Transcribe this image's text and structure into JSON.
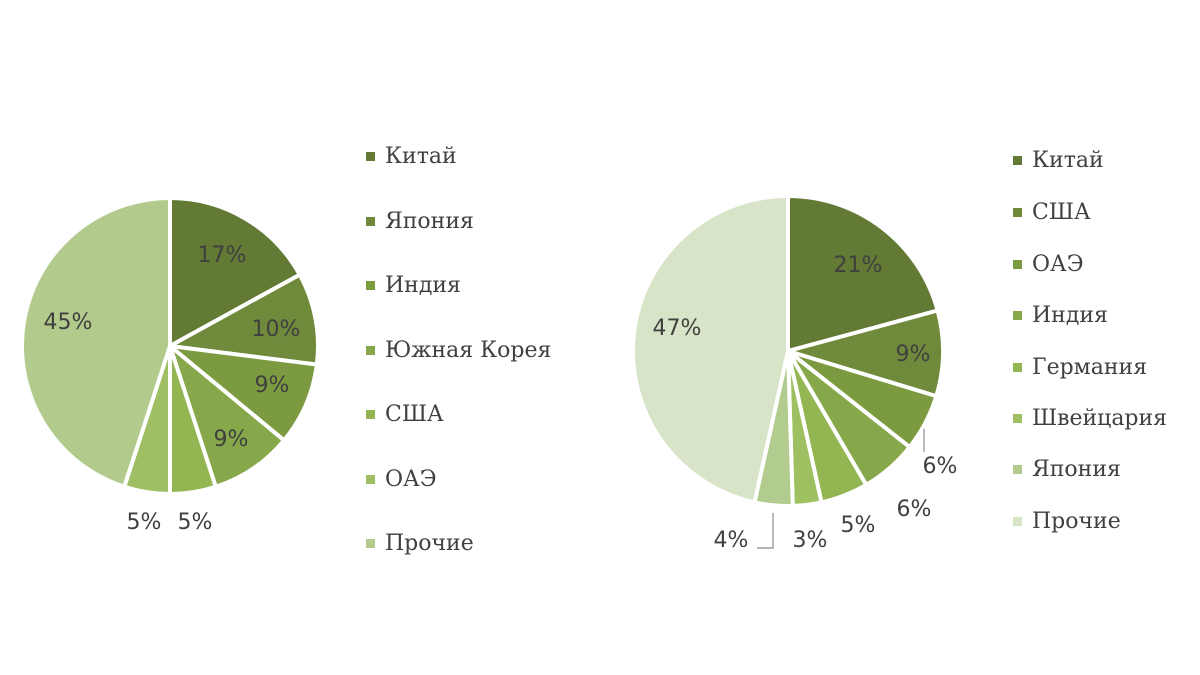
{
  "chart_data": [
    {
      "type": "pie",
      "title": "",
      "categories": [
        "Китай",
        "Япония",
        "Индия",
        "Южная Корея",
        "США",
        "ОАЭ",
        "Прочие"
      ],
      "values": [
        17,
        10,
        9,
        9,
        5,
        5,
        45
      ],
      "labels": [
        "17%",
        "10%",
        "9%",
        "9%",
        "5%",
        "5%",
        "45%"
      ],
      "colors": [
        "#627a34",
        "#6f8a3a",
        "#7c9a40",
        "#87a84a",
        "#93b552",
        "#9fbf64",
        "#b2ca8c"
      ],
      "legend_position": "right"
    },
    {
      "type": "pie",
      "title": "",
      "categories": [
        "Китай",
        "США",
        "ОАЭ",
        "Индия",
        "Германия",
        "Швейцария",
        "Япония",
        "Прочие"
      ],
      "values": [
        21,
        9,
        6,
        6,
        5,
        3,
        4,
        47
      ],
      "labels": [
        "21%",
        "9%",
        "6%",
        "6%",
        "5%",
        "3%",
        "4%",
        "47%"
      ],
      "colors": [
        "#627a34",
        "#6f8a3a",
        "#7c9a40",
        "#87a84a",
        "#93b552",
        "#9fc060",
        "#b2cb8e",
        "#d8e4c8"
      ],
      "legend_position": "right"
    }
  ],
  "charts": [
    {
      "legend": [
        "Китай",
        "Япония",
        "Индия",
        "Южная Корея",
        "США",
        "ОАЭ",
        "Прочие"
      ],
      "labels": [
        "17%",
        "10%",
        "9%",
        "9%",
        "5%",
        "5%",
        "45%"
      ]
    },
    {
      "legend": [
        "Китай",
        "США",
        "ОАЭ",
        "Индия",
        "Германия",
        "Швейцария",
        "Япония",
        "Прочие"
      ],
      "labels": [
        "21%",
        "9%",
        "6%",
        "6%",
        "5%",
        "3%",
        "4%",
        "47%"
      ]
    }
  ]
}
